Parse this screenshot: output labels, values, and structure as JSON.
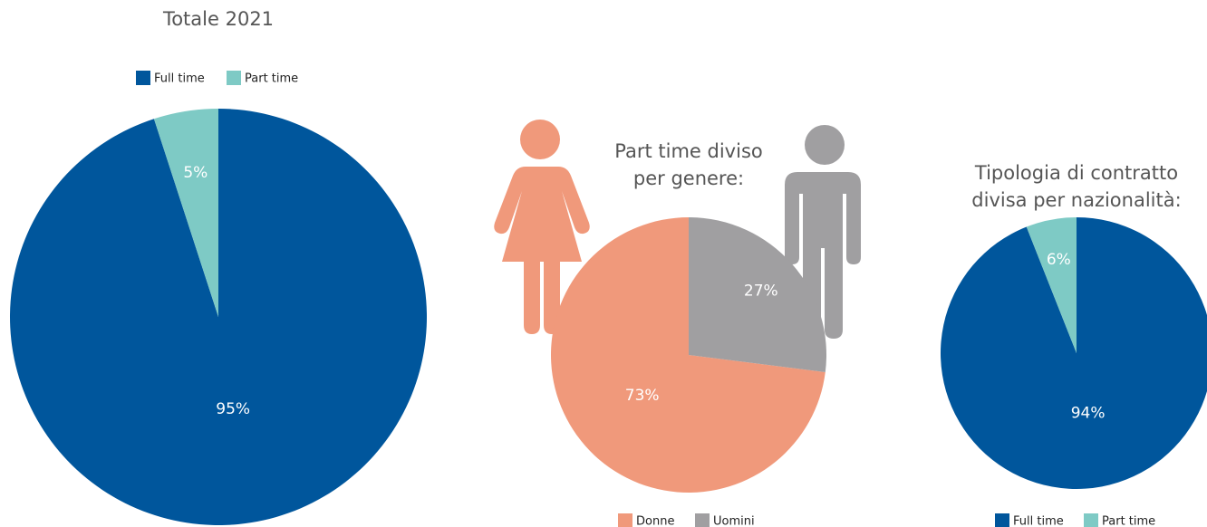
{
  "chart_data": [
    {
      "type": "pie",
      "title": [
        "Totale 2021"
      ],
      "categories": [
        "Full time",
        "Part time"
      ],
      "values": [
        95,
        5
      ],
      "value_labels": [
        "95%",
        "5%"
      ],
      "colors": [
        "#00569c",
        "#7ecac5"
      ],
      "legend": "top",
      "direction": "clockwise"
    },
    {
      "type": "pie",
      "title": [
        "Part time diviso",
        "per genere:"
      ],
      "categories": [
        "Donne",
        "Uomini"
      ],
      "values": [
        73,
        27
      ],
      "value_labels": [
        "73%",
        "27%"
      ],
      "colors": [
        "#f0997b",
        "#a09fa1"
      ],
      "legend": "bottom",
      "direction": "counterclockwise"
    },
    {
      "type": "pie",
      "title": [
        "Tipologia di contratto",
        "divisa per nazionalità:"
      ],
      "categories": [
        "Full time",
        "Part time"
      ],
      "values": [
        94,
        6
      ],
      "value_labels": [
        "94%",
        "6%"
      ],
      "colors": [
        "#00569c",
        "#7ecac5"
      ],
      "legend": "bottom",
      "direction": "clockwise"
    }
  ]
}
